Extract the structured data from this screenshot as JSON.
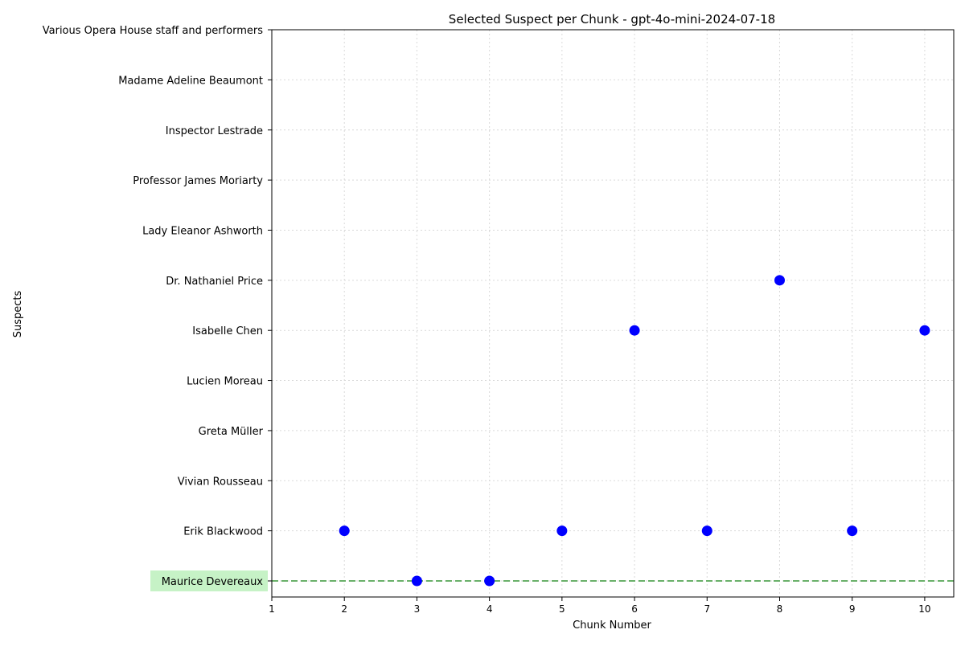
{
  "chart_data": {
    "type": "scatter",
    "title": "Selected Suspect per Chunk - gpt-4o-mini-2024-07-18",
    "xlabel": "Chunk Number",
    "ylabel": "Suspects",
    "x_ticks": [
      1,
      2,
      3,
      4,
      5,
      6,
      7,
      8,
      9,
      10
    ],
    "xlim": [
      1,
      10.4
    ],
    "categories": [
      "Maurice Devereaux",
      "Erik Blackwood",
      "Vivian Rousseau",
      "Greta Müller",
      "Lucien Moreau",
      "Isabelle Chen",
      "Dr. Nathaniel Price",
      "Lady Eleanor Ashworth",
      "Professor James Moriarty",
      "Inspector Lestrade",
      "Madame Adeline Beaumont",
      "Various Opera House staff and performers"
    ],
    "highlighted_category": "Maurice Devereaux",
    "reference_line": "Maurice Devereaux",
    "points": [
      {
        "x": 2,
        "y": "Erik Blackwood"
      },
      {
        "x": 3,
        "y": "Maurice Devereaux"
      },
      {
        "x": 4,
        "y": "Maurice Devereaux"
      },
      {
        "x": 5,
        "y": "Erik Blackwood"
      },
      {
        "x": 6,
        "y": "Isabelle Chen"
      },
      {
        "x": 7,
        "y": "Erik Blackwood"
      },
      {
        "x": 8,
        "y": "Dr. Nathaniel Price"
      },
      {
        "x": 9,
        "y": "Erik Blackwood"
      },
      {
        "x": 10,
        "y": "Isabelle Chen"
      }
    ],
    "grid": true,
    "colors": {
      "point": "#0000ff",
      "reference_line": "#6ab06a",
      "highlight_bg": "#c6f2c6",
      "grid": "#d9d9d9"
    }
  }
}
